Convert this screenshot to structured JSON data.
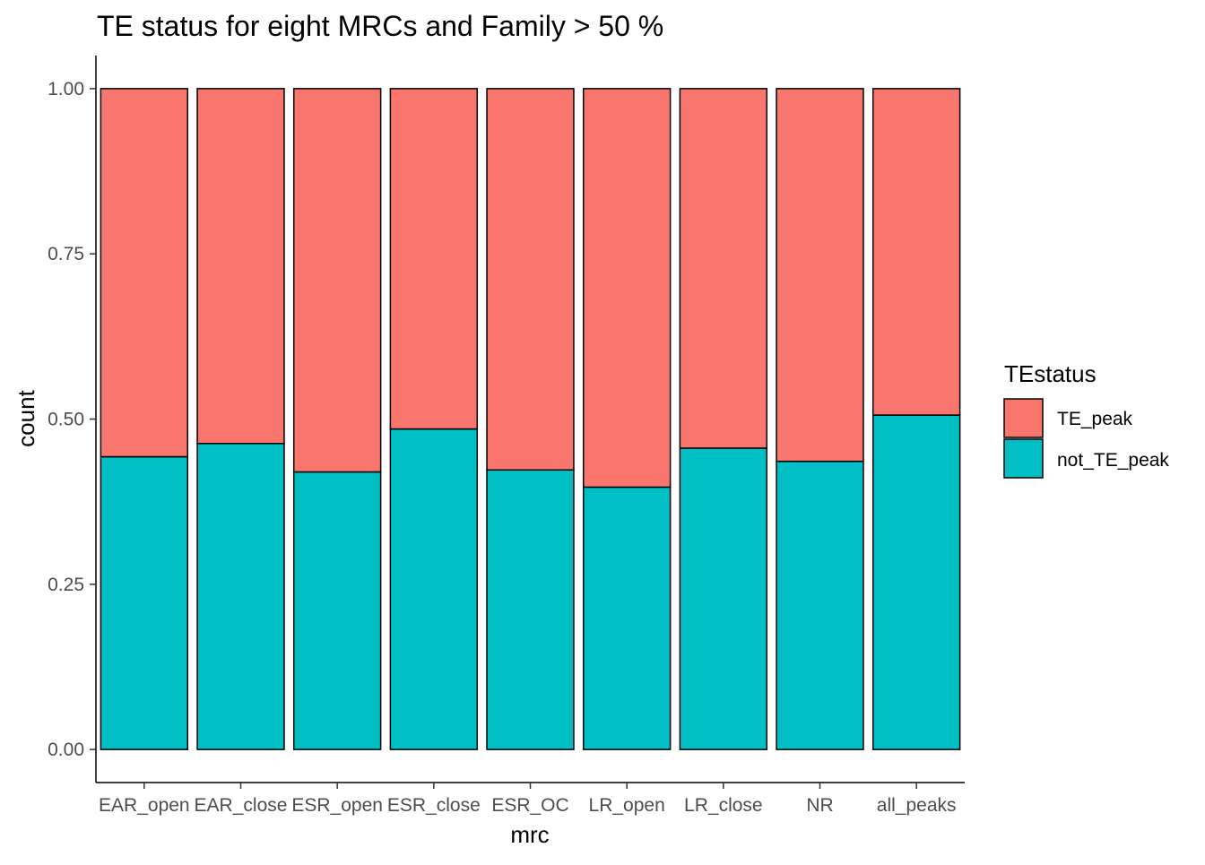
{
  "chart_data": {
    "type": "bar",
    "stacked": true,
    "position": "fill",
    "title": "TE status for eight MRCs and Family > 50 %",
    "xlabel": "mrc",
    "ylabel": "count",
    "ylim": [
      -0.05,
      1.05
    ],
    "yticks": [
      0.0,
      0.25,
      0.5,
      0.75,
      1.0
    ],
    "ytick_labels": [
      "0.00",
      "0.25",
      "0.50",
      "0.75",
      "1.00"
    ],
    "categories": [
      "EAR_open",
      "EAR_close",
      "ESR_open",
      "ESR_close",
      "ESR_OC",
      "LR_open",
      "LR_close",
      "NR",
      "all_peaks"
    ],
    "series": [
      {
        "name": "not_TE_peak",
        "color": "#00BFC4",
        "values": [
          0.443,
          0.463,
          0.42,
          0.485,
          0.423,
          0.397,
          0.456,
          0.436,
          0.506
        ]
      },
      {
        "name": "TE_peak",
        "color": "#F8766D",
        "values": [
          0.557,
          0.537,
          0.58,
          0.515,
          0.577,
          0.603,
          0.544,
          0.564,
          0.494
        ]
      }
    ],
    "legend": {
      "title": "TEstatus",
      "placement": "right",
      "entries": [
        {
          "label": "TE_peak",
          "color": "#F8766D"
        },
        {
          "label": "not_TE_peak",
          "color": "#00BFC4"
        }
      ]
    },
    "grid": false
  }
}
